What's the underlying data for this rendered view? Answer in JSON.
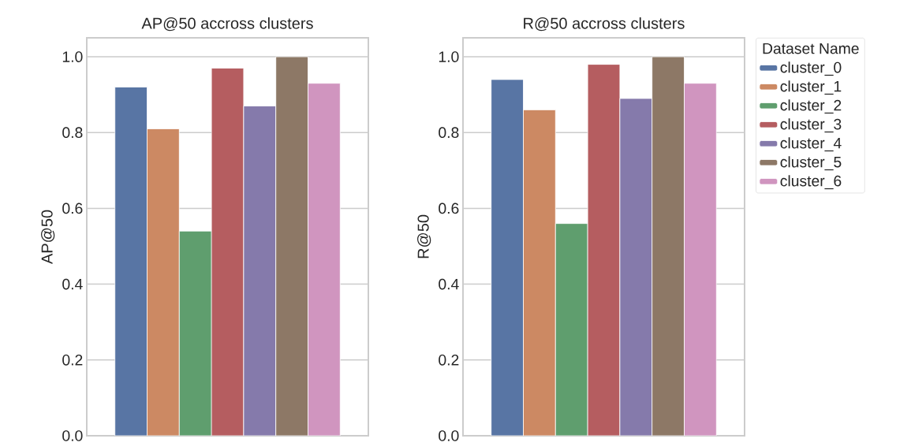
{
  "chart_data": [
    {
      "type": "bar",
      "title": "AP@50 accross clusters",
      "ylabel": "AP@50",
      "categories": [
        null
      ],
      "series": [
        {
          "color": "#5875a4",
          "values": [
            0.92
          ]
        },
        {
          "color": "#cc8963",
          "values": [
            0.81
          ]
        },
        {
          "color": "#5f9e6e",
          "values": [
            0.54
          ]
        },
        {
          "color": "#b55d60",
          "values": [
            0.97
          ]
        },
        {
          "color": "#857aab",
          "values": [
            0.87
          ]
        },
        {
          "color": "#8d7866",
          "values": [
            1.0
          ]
        },
        {
          "color": "#d095bf",
          "values": [
            0.93
          ]
        }
      ],
      "ylim": [
        0,
        1.05
      ],
      "yticks": [
        {
          "value": 0,
          "label": "0.0"
        },
        {
          "value": 0.2,
          "label": "0.2"
        },
        {
          "value": 0.4,
          "label": "0.4"
        },
        {
          "value": 0.6,
          "label": "0.6"
        },
        {
          "value": 0.8,
          "label": "0.8"
        },
        {
          "value": 1.0,
          "label": "1.0"
        }
      ],
      "grid": "y",
      "legend": false
    },
    {
      "type": "bar",
      "title": "R@50 accross clusters",
      "ylabel": "R@50",
      "legend_title": "Dataset Name",
      "categories": [
        null
      ],
      "series": [
        {
          "name": "cluster_0",
          "color": "#5875a4",
          "values": [
            0.94
          ]
        },
        {
          "name": "cluster_1",
          "color": "#cc8963",
          "values": [
            0.86
          ]
        },
        {
          "name": "cluster_2",
          "color": "#5f9e6e",
          "values": [
            0.56
          ]
        },
        {
          "name": "cluster_3",
          "color": "#b55d60",
          "values": [
            0.98
          ]
        },
        {
          "name": "cluster_4",
          "color": "#857aab",
          "values": [
            0.89
          ]
        },
        {
          "name": "cluster_5",
          "color": "#8d7866",
          "values": [
            1.0
          ]
        },
        {
          "name": "cluster_6",
          "color": "#d095bf",
          "values": [
            0.93
          ]
        }
      ],
      "ylim": [
        0,
        1.05
      ],
      "yticks": [
        {
          "value": 0,
          "label": "0.0"
        },
        {
          "value": 0.2,
          "label": "0.2"
        },
        {
          "value": 0.4,
          "label": "0.4"
        },
        {
          "value": 0.6,
          "label": "0.6"
        },
        {
          "value": 0.8,
          "label": "0.8"
        },
        {
          "value": 1.0,
          "label": "1.0"
        }
      ],
      "grid": "y",
      "legend": "right"
    }
  ]
}
